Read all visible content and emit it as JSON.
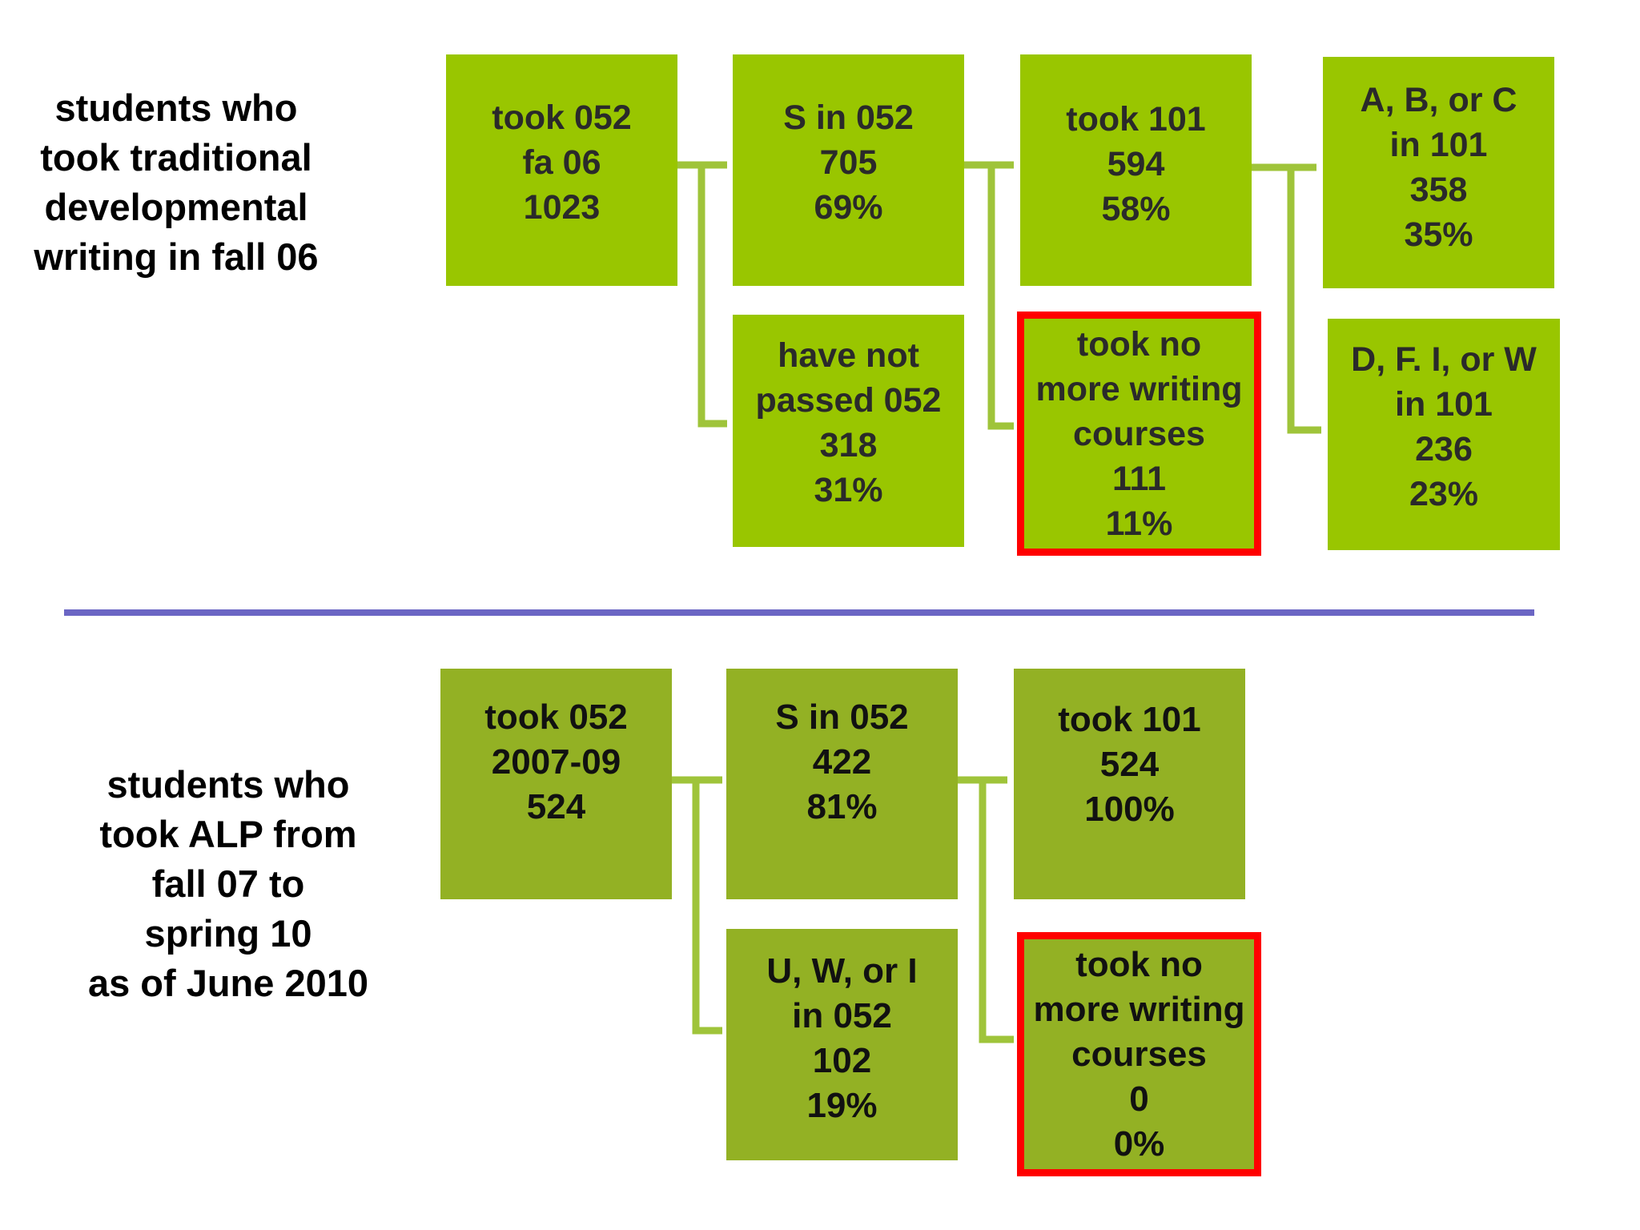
{
  "colors": {
    "top_box": "#99c600",
    "bottom_box": "#93b124",
    "connector": "#9fc43a",
    "highlight_border": "#ff0000",
    "divider": "#6b66c4"
  },
  "top_row": {
    "label": [
      "students who",
      "took traditional",
      "developmental",
      "writing in fall 06"
    ],
    "boxes": {
      "took_052": [
        "took 052",
        "fa 06",
        "1023"
      ],
      "s_in_052": [
        "S in 052",
        "705",
        "69%"
      ],
      "have_not_passed": [
        "have not",
        "passed 052",
        "318",
        "31%"
      ],
      "took_101": [
        "took 101",
        "594",
        "58%"
      ],
      "no_more_writing": [
        "took no",
        "more writing",
        "courses",
        "111",
        "11%"
      ],
      "abc_in_101": [
        "A, B, or C",
        "in 101",
        "358",
        "35%"
      ],
      "dfiw_in_101": [
        "D, F. I, or W",
        "in 101",
        "236",
        "23%"
      ]
    }
  },
  "bottom_row": {
    "label": [
      "students who",
      "took ALP from",
      "fall 07 to",
      "spring 10",
      "as of June 2010"
    ],
    "boxes": {
      "took_052": [
        "took 052",
        "2007-09",
        "524"
      ],
      "s_in_052": [
        "S in 052",
        "422",
        "81%"
      ],
      "uwi_in_052": [
        "U, W, or I",
        "in 052",
        "102",
        "19%"
      ],
      "took_101": [
        "took 101",
        "524",
        "100%"
      ],
      "no_more_writing": [
        "took no",
        "more writing",
        "courses",
        "0",
        "0%"
      ]
    }
  }
}
